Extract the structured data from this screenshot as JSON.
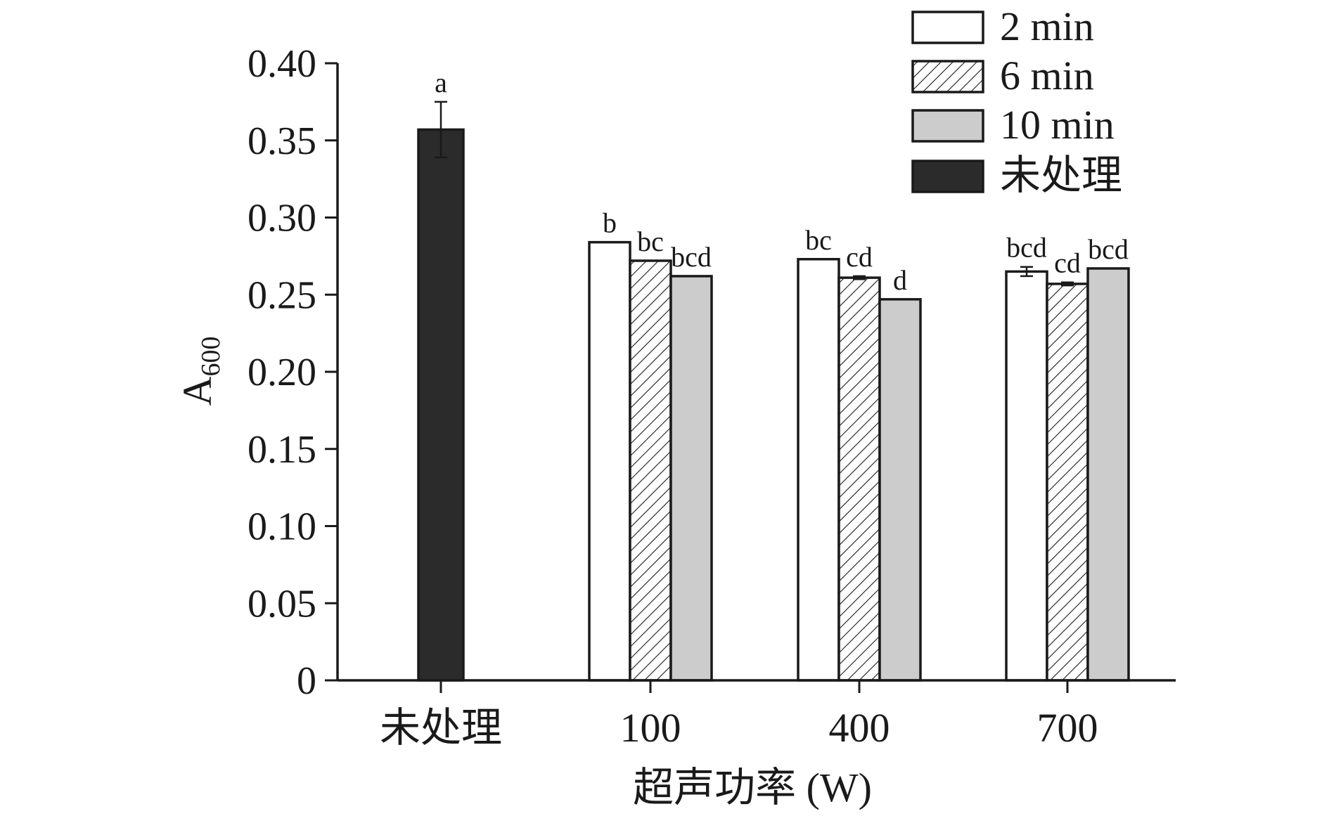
{
  "chart_data": {
    "type": "bar",
    "title": "",
    "xlabel": "超声功率 (W)",
    "ylabel": {
      "main": "A",
      "sub": "600"
    },
    "ylim": [
      0,
      0.4
    ],
    "yticks": [
      0,
      0.05,
      0.1,
      0.15,
      0.2,
      0.25,
      0.3,
      0.35,
      0.4
    ],
    "ytick_labels": [
      "0",
      "0.05",
      "0.10",
      "0.15",
      "0.20",
      "0.25",
      "0.30",
      "0.35",
      "0.40"
    ],
    "categories": [
      "未处理",
      "100",
      "400",
      "700"
    ],
    "legend_position": "top-right",
    "series": [
      {
        "name": "2 min",
        "fill": "#ffffff",
        "pattern": "none",
        "values": [
          null,
          0.284,
          0.273,
          0.265
        ],
        "errors": [
          null,
          0,
          0,
          0.003
        ],
        "labels": [
          null,
          "b",
          "bc",
          "bcd"
        ]
      },
      {
        "name": "6 min",
        "fill": "#ffffff",
        "pattern": "hatch",
        "values": [
          null,
          0.272,
          0.261,
          0.257
        ],
        "errors": [
          null,
          0,
          0.001,
          0.001
        ],
        "labels": [
          null,
          "bc",
          "cd",
          "cd"
        ]
      },
      {
        "name": "10 min",
        "fill": "#cccccc",
        "pattern": "none",
        "values": [
          null,
          0.262,
          0.247,
          0.267
        ],
        "errors": [
          null,
          0,
          0,
          0
        ],
        "labels": [
          null,
          "bcd",
          "d",
          "bcd"
        ]
      },
      {
        "name": "未处理",
        "fill": "#2b2b2b",
        "pattern": "none",
        "values": [
          0.357,
          null,
          null,
          null
        ],
        "errors": [
          0.018,
          null,
          null,
          null
        ],
        "labels": [
          "a",
          null,
          null,
          null
        ]
      }
    ],
    "colors": {
      "edge": "#1a1a1a",
      "axis": "#1a1a1a"
    }
  }
}
